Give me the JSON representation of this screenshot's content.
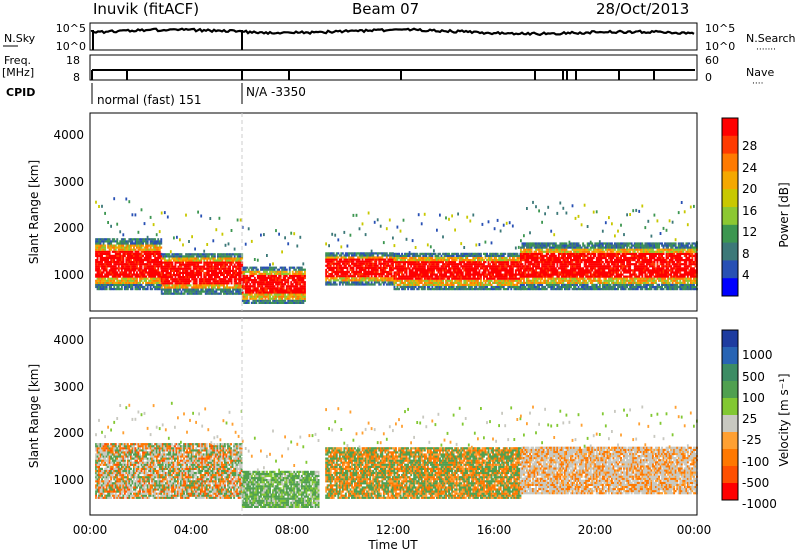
{
  "header": {
    "station": "Inuvik (fitACF)",
    "beam": "Beam 07",
    "date": "28/Oct/2013"
  },
  "strips": {
    "nsky_label": "N.Sky",
    "nsky_ticks": [
      "10^5",
      "10^0"
    ],
    "nsearch_label": "N.Search",
    "nsearch_ticks": [
      "10^5",
      "10^0"
    ],
    "freq_label_1": "Freq.",
    "freq_label_2": "[MHz]",
    "freq_ticks": [
      "18",
      "8"
    ],
    "nave_label": "Nave",
    "nave_ticks": [
      "60",
      "0"
    ],
    "cpid_label": "CPID",
    "cpid_segments": [
      "normal (fast) 151",
      "N/A -3350"
    ]
  },
  "axes": {
    "y_label": "Slant Range [km]",
    "y_ticks": [
      "4000",
      "3000",
      "2000",
      "1000"
    ],
    "x_label": "Time UT",
    "x_ticks": [
      "00:00",
      "04:00",
      "08:00",
      "12:00",
      "16:00",
      "20:00",
      "00:00"
    ]
  },
  "power_colorbar": {
    "label": "Power [dB]",
    "ticks": [
      "28",
      "24",
      "20",
      "16",
      "12",
      "8",
      "4"
    ],
    "colors": [
      "#ff0000",
      "#ff3a00",
      "#ff7a00",
      "#f4a800",
      "#c8c800",
      "#8cc832",
      "#3c9650",
      "#3c7878",
      "#2850b4",
      "#0000ff"
    ]
  },
  "velocity_colorbar": {
    "label": "Velocity [m s⁻¹]",
    "ticks": [
      "1000",
      "500",
      "100",
      "25",
      "-25",
      "-100",
      "-500",
      "-1000"
    ],
    "colors": [
      "#1e3ca0",
      "#2864b4",
      "#3c8c64",
      "#50a050",
      "#82c832",
      "#c8c8c0",
      "#ffa032",
      "#ff7800",
      "#ff5000",
      "#ff0000"
    ]
  },
  "chart_data": {
    "type": "heatmap",
    "x_range_hours": [
      0,
      24
    ],
    "y_range_km": [
      200,
      4500
    ],
    "power_bands": [
      {
        "t": [
          0.2,
          2.8
        ],
        "r": [
          700,
          1800
        ],
        "level": "red"
      },
      {
        "t": [
          2.8,
          6.0
        ],
        "r": [
          600,
          1500
        ],
        "level": "red"
      },
      {
        "t": [
          6.0,
          8.5
        ],
        "r": [
          400,
          1200
        ],
        "level": "red"
      },
      {
        "t": [
          9.3,
          12.0
        ],
        "r": [
          800,
          1500
        ],
        "level": "red"
      },
      {
        "t": [
          12.0,
          17.0
        ],
        "r": [
          700,
          1500
        ],
        "level": "red"
      },
      {
        "t": [
          17.0,
          24.0
        ],
        "r": [
          700,
          1700
        ],
        "level": "red"
      }
    ],
    "velocity_bands": [
      {
        "t": [
          0.2,
          6.0
        ],
        "r": [
          600,
          1800
        ],
        "class": "mixed"
      },
      {
        "t": [
          6.0,
          9.0
        ],
        "r": [
          400,
          1200
        ],
        "class": "green"
      },
      {
        "t": [
          9.3,
          17.0
        ],
        "r": [
          600,
          1700
        ],
        "class": "green-orange"
      },
      {
        "t": [
          17.0,
          24.0
        ],
        "r": [
          700,
          1700
        ],
        "class": "grey-orange"
      }
    ]
  }
}
